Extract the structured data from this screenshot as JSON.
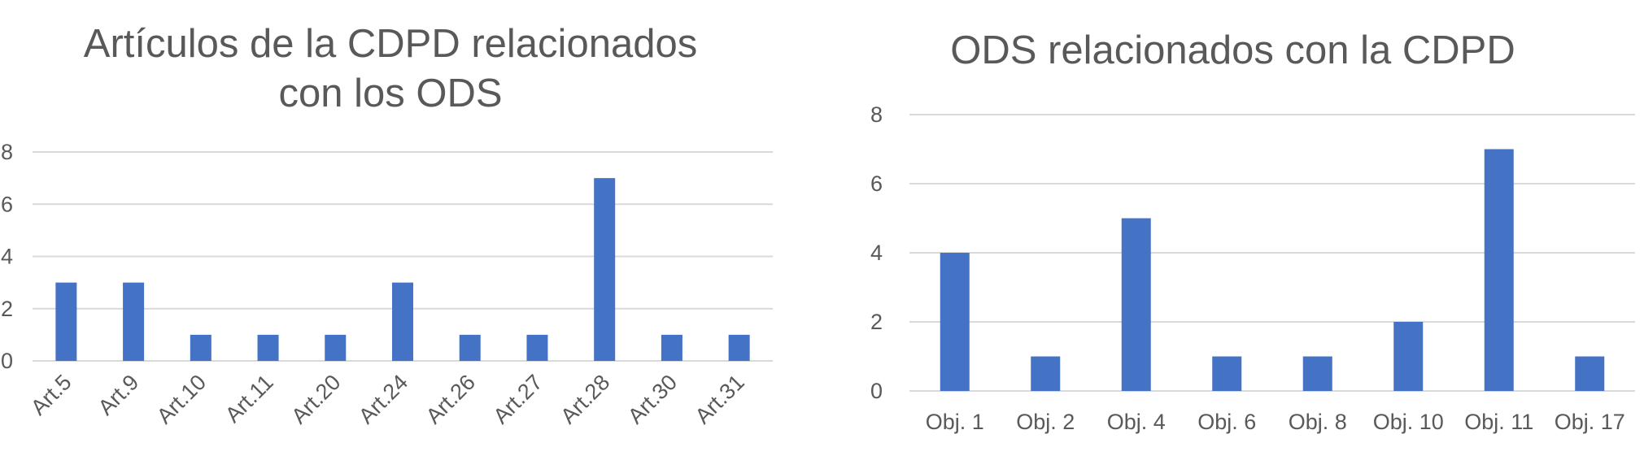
{
  "colors": {
    "bar": "#4472c4",
    "grid": "#d9d9d9",
    "text": "#595959"
  },
  "chart_data": [
    {
      "type": "bar",
      "title": "Artículos de la CDPD relacionados con los ODS",
      "title_lines": [
        "Artículos de la CDPD relacionados",
        "con los ODS"
      ],
      "categories": [
        "Art.5",
        "Art.9",
        "Art.10",
        "Art.11",
        "Art.20",
        "Art.24",
        "Art.26",
        "Art.27",
        "Art.28",
        "Art.30",
        "Art.31"
      ],
      "values": [
        3,
        3,
        1,
        1,
        1,
        3,
        1,
        1,
        7,
        1,
        1
      ],
      "yticks": [
        "0",
        "2",
        "4",
        "6",
        "8"
      ],
      "ylim": [
        0,
        8
      ],
      "xlabel": "",
      "ylabel": "",
      "grid": true,
      "x_tick_rotation": "rotated"
    },
    {
      "type": "bar",
      "title": "ODS relacionados con la CDPD",
      "title_lines": [
        "ODS relacionados con la CDPD"
      ],
      "categories": [
        "Obj. 1",
        "Obj. 2",
        "Obj. 4",
        "Obj. 6",
        "Obj. 8",
        "Obj. 10",
        "Obj. 11",
        "Obj. 17"
      ],
      "values": [
        4,
        1,
        5,
        1,
        1,
        2,
        7,
        1
      ],
      "yticks": [
        "0",
        "2",
        "4",
        "6",
        "8"
      ],
      "ylim": [
        0,
        8
      ],
      "xlabel": "",
      "ylabel": "",
      "grid": true,
      "x_tick_rotation": "horizontal"
    }
  ]
}
